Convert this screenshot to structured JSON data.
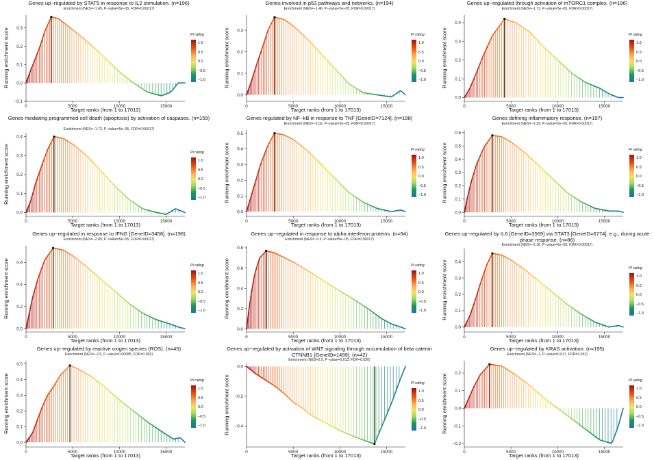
{
  "shared": {
    "xlabel": "Target ranks (from 1 to 17013)",
    "ylabel": "Running enrichment score",
    "legend_title": "Pi rating",
    "legend_labels": [
      "1.0",
      "0.5",
      "0.0",
      "−0.5",
      "−1.0"
    ],
    "colors": {
      "low": "#2171b5",
      "mid_low": "#1a9850",
      "mid": "#f3e35f",
      "mid_high": "#e6550d",
      "high": "#a50f15",
      "leading_edge": "#111111"
    }
  },
  "chart_data": [
    {
      "type": "line",
      "title": "Genes up−regulated by STAT5 in response to IL2 stimulation. (n=196)",
      "subtitle": "Enrichment (NES=−1.45, P−value=5e−05, FDR=0.00017)",
      "xlabel": "Target ranks (from 1 to 17013)",
      "ylabel": "Running enrichment score",
      "xlim": [
        0,
        17013
      ],
      "ylim": [
        -0.1,
        0.37
      ],
      "xticks": [
        0,
        5000,
        10000,
        15000
      ],
      "yticks": [
        -0.1,
        0.0,
        0.1,
        0.2,
        0.3
      ],
      "ytick_labels": [
        "−0.1",
        "0.0",
        "0.1",
        "0.2",
        "0.3"
      ],
      "peak": [
        2700,
        0.36
      ],
      "curve": [
        [
          0,
          0
        ],
        [
          500,
          0.07
        ],
        [
          900,
          0.12
        ],
        [
          1500,
          0.2
        ],
        [
          2000,
          0.28
        ],
        [
          2700,
          0.36
        ],
        [
          3500,
          0.35
        ],
        [
          4500,
          0.31
        ],
        [
          6000,
          0.25
        ],
        [
          8000,
          0.16
        ],
        [
          10000,
          0.06
        ],
        [
          11500,
          0.0
        ],
        [
          13000,
          -0.05
        ],
        [
          14500,
          -0.07
        ],
        [
          15500,
          -0.05
        ],
        [
          16300,
          0.0
        ],
        [
          17013,
          0.0
        ]
      ]
    },
    {
      "type": "line",
      "title": "Genes involved in p53 pathways and networks. (n=194)",
      "subtitle": "Enrichment (NES=−1.46, P−value=5e−05, FDR=0.00017)",
      "xlabel": "Target ranks (from 1 to 17013)",
      "ylabel": "Running enrichment score",
      "xlim": [
        0,
        17013
      ],
      "ylim": [
        -0.03,
        0.37
      ],
      "xticks": [
        0,
        5000,
        10000,
        15000
      ],
      "yticks": [
        0.0,
        0.1,
        0.2,
        0.3
      ],
      "ytick_labels": [
        "0.0",
        "0.1",
        "0.2",
        "0.3"
      ],
      "peak": [
        3000,
        0.36
      ],
      "curve": [
        [
          0,
          0
        ],
        [
          500,
          0.06
        ],
        [
          1000,
          0.13
        ],
        [
          1700,
          0.22
        ],
        [
          2300,
          0.3
        ],
        [
          3000,
          0.36
        ],
        [
          4000,
          0.35
        ],
        [
          5000,
          0.32
        ],
        [
          6500,
          0.26
        ],
        [
          8000,
          0.19
        ],
        [
          9500,
          0.12
        ],
        [
          11000,
          0.05
        ],
        [
          12500,
          0.01
        ],
        [
          14000,
          0.0
        ],
        [
          15500,
          -0.01
        ],
        [
          16500,
          0.02
        ],
        [
          17013,
          0.0
        ]
      ]
    },
    {
      "type": "line",
      "title": "Genes up−regulated through activation of mTORC1 complex. (n=196)",
      "subtitle": "Enrichment (NES=−1.71, P−value=5e−05, FDR=0.00017)",
      "xlabel": "Target ranks (from 1 to 17013)",
      "ylabel": "Running enrichment score",
      "xlim": [
        0,
        17013
      ],
      "ylim": [
        -0.02,
        0.44
      ],
      "xticks": [
        0,
        5000,
        10000,
        15000
      ],
      "yticks": [
        0.0,
        0.1,
        0.2,
        0.3,
        0.4
      ],
      "ytick_labels": [
        "0.0",
        "0.1",
        "0.2",
        "0.3",
        "0.4"
      ],
      "peak": [
        4300,
        0.42
      ],
      "curve": [
        [
          0,
          0
        ],
        [
          600,
          0.05
        ],
        [
          1200,
          0.12
        ],
        [
          2000,
          0.22
        ],
        [
          3000,
          0.33
        ],
        [
          4300,
          0.42
        ],
        [
          5500,
          0.4
        ],
        [
          7000,
          0.35
        ],
        [
          8500,
          0.27
        ],
        [
          10000,
          0.2
        ],
        [
          11500,
          0.13
        ],
        [
          13000,
          0.08
        ],
        [
          14500,
          0.05
        ],
        [
          15500,
          0.02
        ],
        [
          16500,
          0.0
        ],
        [
          17013,
          0.0
        ]
      ]
    },
    {
      "type": "line",
      "title": "Genes mediating programmed cell death (apoptosis) by activation of caspases. (n=159)",
      "subtitle": "Enrichment (NES=−1.72, P−value=5e−05, FDR=0.00017)",
      "xlabel": "Target ranks (from 1 to 17013)",
      "ylabel": "Running enrichment score",
      "xlim": [
        0,
        17013
      ],
      "ylim": [
        -0.02,
        0.42
      ],
      "xticks": [
        0,
        5000,
        10000,
        15000
      ],
      "yticks": [
        0.0,
        0.1,
        0.2,
        0.3,
        0.4
      ],
      "ytick_labels": [
        "0.0",
        "0.1",
        "0.2",
        "0.3",
        "0.4"
      ],
      "peak": [
        3000,
        0.4
      ],
      "curve": [
        [
          0,
          0
        ],
        [
          500,
          0.06
        ],
        [
          1000,
          0.15
        ],
        [
          1700,
          0.25
        ],
        [
          2300,
          0.33
        ],
        [
          3000,
          0.4
        ],
        [
          4000,
          0.39
        ],
        [
          5000,
          0.36
        ],
        [
          6500,
          0.3
        ],
        [
          8000,
          0.22
        ],
        [
          9500,
          0.14
        ],
        [
          11000,
          0.07
        ],
        [
          12500,
          0.02
        ],
        [
          14000,
          0.0
        ],
        [
          15000,
          -0.01
        ],
        [
          16000,
          0.02
        ],
        [
          17013,
          0.0
        ]
      ]
    },
    {
      "type": "line",
      "title": "Genes regulated by NF−kB in response to TNF [GeneID=7124]. (n=198)",
      "subtitle": "Enrichment (NES=−2.02, P−value=5e−05, FDR=0.00017)",
      "xlabel": "Target ranks (from 1 to 17013)",
      "ylabel": "Running enrichment score",
      "xlim": [
        0,
        17013
      ],
      "ylim": [
        -0.03,
        0.52
      ],
      "xticks": [
        0,
        5000,
        10000,
        15000
      ],
      "yticks": [
        0.0,
        0.1,
        0.2,
        0.3,
        0.4,
        0.5
      ],
      "ytick_labels": [
        "0.0",
        "0.1",
        "0.2",
        "0.3",
        "0.4",
        "0.5"
      ],
      "peak": [
        3000,
        0.5
      ],
      "curve": [
        [
          0,
          0
        ],
        [
          400,
          0.08
        ],
        [
          900,
          0.18
        ],
        [
          1500,
          0.3
        ],
        [
          2200,
          0.41
        ],
        [
          3000,
          0.5
        ],
        [
          4000,
          0.49
        ],
        [
          5000,
          0.46
        ],
        [
          6500,
          0.39
        ],
        [
          8000,
          0.3
        ],
        [
          9500,
          0.21
        ],
        [
          11000,
          0.12
        ],
        [
          12500,
          0.06
        ],
        [
          14000,
          0.02
        ],
        [
          15500,
          0.0
        ],
        [
          16500,
          0.01
        ],
        [
          17013,
          0.0
        ]
      ]
    },
    {
      "type": "line",
      "title": "Genes defining inflammatory response. (n=197)",
      "subtitle": "Enrichment (NES=−2.29, P−value=5e−05, FDR=0.00017)",
      "xlabel": "Target ranks (from 1 to 17013)",
      "ylabel": "Running enrichment score",
      "xlim": [
        0,
        17013
      ],
      "ylim": [
        -0.03,
        0.62
      ],
      "xticks": [
        0,
        5000,
        10000,
        15000
      ],
      "yticks": [
        0.0,
        0.1,
        0.2,
        0.3,
        0.4,
        0.5,
        0.6
      ],
      "ytick_labels": [
        "0.0",
        "0.1",
        "0.2",
        "0.3",
        "0.4",
        "0.5",
        "0.6"
      ],
      "peak": [
        3000,
        0.58
      ],
      "curve": [
        [
          0,
          0
        ],
        [
          300,
          0.1
        ],
        [
          700,
          0.22
        ],
        [
          1300,
          0.36
        ],
        [
          2100,
          0.49
        ],
        [
          3000,
          0.58
        ],
        [
          4000,
          0.57
        ],
        [
          5000,
          0.53
        ],
        [
          6500,
          0.45
        ],
        [
          8000,
          0.35
        ],
        [
          9500,
          0.25
        ],
        [
          11000,
          0.15
        ],
        [
          12500,
          0.08
        ],
        [
          14000,
          0.03
        ],
        [
          15500,
          0.01
        ],
        [
          16500,
          0.01
        ],
        [
          17013,
          0.0
        ]
      ]
    },
    {
      "type": "line",
      "title": "Genes up−regulated in response to IFNG [GeneID=3458]. (n=198)",
      "subtitle": "Enrichment (NES=−2.89, P−value=5e−05, FDR=0.00017)",
      "xlabel": "Target ranks (from 1 to 17013)",
      "ylabel": "Running enrichment score",
      "xlim": [
        0,
        17013
      ],
      "ylim": [
        -0.03,
        0.75
      ],
      "xticks": [
        0,
        5000,
        10000,
        15000
      ],
      "yticks": [
        0.0,
        0.2,
        0.4,
        0.6
      ],
      "ytick_labels": [
        "0.0",
        "0.2",
        "0.4",
        "0.6"
      ],
      "peak": [
        2900,
        0.73
      ],
      "curve": [
        [
          0,
          0
        ],
        [
          300,
          0.12
        ],
        [
          700,
          0.28
        ],
        [
          1300,
          0.46
        ],
        [
          2000,
          0.62
        ],
        [
          2900,
          0.73
        ],
        [
          4000,
          0.71
        ],
        [
          5000,
          0.66
        ],
        [
          6500,
          0.56
        ],
        [
          8000,
          0.45
        ],
        [
          9500,
          0.34
        ],
        [
          11000,
          0.23
        ],
        [
          12500,
          0.14
        ],
        [
          14000,
          0.08
        ],
        [
          15500,
          0.04
        ],
        [
          16500,
          0.01
        ],
        [
          17013,
          0.0
        ]
      ]
    },
    {
      "type": "line",
      "title": "Genes up−regulated in response to alpha interferon proteins. (n=94)",
      "subtitle": "Enrichment (NES=−3.5, P−value=5e−05, FDR=0.00017)",
      "xlabel": "Target ranks (from 1 to 17013)",
      "ylabel": "Running enrichment score",
      "xlim": [
        0,
        17013
      ],
      "ylim": [
        -0.03,
        0.82
      ],
      "xticks": [
        0,
        5000,
        10000,
        15000
      ],
      "yticks": [
        0.0,
        0.2,
        0.4,
        0.6,
        0.8
      ],
      "ytick_labels": [
        "0.0",
        "0.2",
        "0.4",
        "0.6",
        "0.8"
      ],
      "peak": [
        2100,
        0.77
      ],
      "curve": [
        [
          0,
          0
        ],
        [
          200,
          0.15
        ],
        [
          500,
          0.35
        ],
        [
          900,
          0.55
        ],
        [
          1400,
          0.7
        ],
        [
          2100,
          0.77
        ],
        [
          3000,
          0.75
        ],
        [
          5000,
          0.66
        ],
        [
          7000,
          0.55
        ],
        [
          9000,
          0.43
        ],
        [
          11000,
          0.32
        ],
        [
          13000,
          0.2
        ],
        [
          14500,
          0.1
        ],
        [
          15500,
          0.05
        ],
        [
          16500,
          0.02
        ],
        [
          17013,
          0.0
        ]
      ]
    },
    {
      "type": "line",
      "title": "Genes up−regulated by IL6 [GeneID=3569] via STAT3 [GeneID=6774], e.g., during acute phase response. (n=86)",
      "subtitle": "Enrichment (NES=−2.16, P−value=5e−05, FDR=0.00017)",
      "xlabel": "Target ranks (from 1 to 17013)",
      "ylabel": "Running enrichment score",
      "xlim": [
        0,
        17013
      ],
      "ylim": [
        -0.03,
        0.48
      ],
      "xticks": [
        0,
        5000,
        10000,
        15000
      ],
      "yticks": [
        0.0,
        0.1,
        0.2,
        0.3,
        0.4
      ],
      "ytick_labels": [
        "0.0",
        "0.1",
        "0.2",
        "0.3",
        "0.4"
      ],
      "peak": [
        3000,
        0.45
      ],
      "curve": [
        [
          0,
          0
        ],
        [
          600,
          0.07
        ],
        [
          1200,
          0.17
        ],
        [
          1800,
          0.28
        ],
        [
          2400,
          0.38
        ],
        [
          3000,
          0.45
        ],
        [
          4000,
          0.44
        ],
        [
          5000,
          0.41
        ],
        [
          6500,
          0.35
        ],
        [
          8000,
          0.28
        ],
        [
          9500,
          0.21
        ],
        [
          11000,
          0.14
        ],
        [
          12500,
          0.08
        ],
        [
          14000,
          0.03
        ],
        [
          15500,
          0.0
        ],
        [
          16500,
          0.01
        ],
        [
          17013,
          0.0
        ]
      ]
    },
    {
      "type": "line",
      "title": "Genes up−regulated by reactive oxigen species (ROS). (n=45)",
      "subtitle": "Enrichment (NES=−2.6, P−value=0.00085, FDR=0.002)",
      "xlabel": "Target ranks (from 1 to 17013)",
      "ylabel": "Running enrichment score",
      "xlim": [
        0,
        17013
      ],
      "ylim": [
        -0.03,
        0.52
      ],
      "xticks": [
        0,
        5000,
        10000,
        15000
      ],
      "yticks": [
        0.0,
        0.1,
        0.2,
        0.3,
        0.4,
        0.5
      ],
      "ytick_labels": [
        "0.0",
        "0.1",
        "0.2",
        "0.3",
        "0.4",
        "0.5"
      ],
      "peak": [
        4700,
        0.49
      ],
      "curve": [
        [
          0,
          0
        ],
        [
          700,
          0.06
        ],
        [
          1200,
          0.14
        ],
        [
          1700,
          0.22
        ],
        [
          2300,
          0.3
        ],
        [
          3000,
          0.36
        ],
        [
          3700,
          0.43
        ],
        [
          4700,
          0.49
        ],
        [
          5500,
          0.47
        ],
        [
          7000,
          0.42
        ],
        [
          8500,
          0.35
        ],
        [
          10000,
          0.27
        ],
        [
          11500,
          0.2
        ],
        [
          13000,
          0.13
        ],
        [
          14500,
          0.07
        ],
        [
          15800,
          0.02
        ],
        [
          16500,
          0.03
        ],
        [
          17013,
          0.0
        ]
      ]
    },
    {
      "type": "line",
      "title": "Genes up−regulated by activation of WNT signaling through accumulation of beta catenin CTNNB1 [GeneID=1499]. (n=42)",
      "subtitle": "Enrichment (NES=2.9, P−value=0.013, FDR=0.026)",
      "xlabel": "Target ranks (from 1 to 17013)",
      "ylabel": "Running enrichment score",
      "xlim": [
        0,
        17013
      ],
      "ylim": [
        -0.54,
        0.02
      ],
      "xticks": [
        0,
        5000,
        10000,
        15000
      ],
      "yticks": [
        0.0,
        -0.2,
        -0.4
      ],
      "ytick_labels": [
        "0.0",
        "−0.2",
        "−0.4"
      ],
      "peak": [
        13700,
        -0.52
      ],
      "curve": [
        [
          0,
          0
        ],
        [
          1000,
          -0.05
        ],
        [
          2000,
          -0.09
        ],
        [
          3000,
          -0.13
        ],
        [
          4000,
          -0.18
        ],
        [
          5000,
          -0.24
        ],
        [
          6000,
          -0.28
        ],
        [
          7000,
          -0.33
        ],
        [
          8500,
          -0.38
        ],
        [
          10000,
          -0.43
        ],
        [
          11500,
          -0.47
        ],
        [
          12800,
          -0.5
        ],
        [
          13700,
          -0.52
        ],
        [
          14500,
          -0.4
        ],
        [
          15500,
          -0.25
        ],
        [
          16500,
          -0.08
        ],
        [
          17013,
          0.0
        ]
      ]
    },
    {
      "type": "line",
      "title": "Genes up−regulated by KRAS activation. (n=195)",
      "subtitle": "Enrichment (NES=−1, P−value=0.017, FDR=0.032)",
      "xlabel": "Target ranks (from 1 to 17013)",
      "ylabel": "Running enrichment score",
      "xlim": [
        0,
        17013
      ],
      "ylim": [
        -0.22,
        0.27
      ],
      "xticks": [
        0,
        5000,
        10000,
        15000
      ],
      "yticks": [
        -0.2,
        -0.1,
        0.0,
        0.1,
        0.2
      ],
      "ytick_labels": [
        "−0.2",
        "−0.1",
        "0.0",
        "0.1",
        "0.2"
      ],
      "peak": [
        2700,
        0.25
      ],
      "curve": [
        [
          0,
          0
        ],
        [
          500,
          0.06
        ],
        [
          1000,
          0.12
        ],
        [
          1700,
          0.19
        ],
        [
          2700,
          0.25
        ],
        [
          4000,
          0.24
        ],
        [
          5500,
          0.19
        ],
        [
          7000,
          0.13
        ],
        [
          8500,
          0.06
        ],
        [
          10000,
          0.0
        ],
        [
          11500,
          -0.06
        ],
        [
          13000,
          -0.12
        ],
        [
          14500,
          -0.18
        ],
        [
          15800,
          -0.2
        ],
        [
          16500,
          -0.1
        ],
        [
          17013,
          0.0
        ]
      ]
    }
  ]
}
